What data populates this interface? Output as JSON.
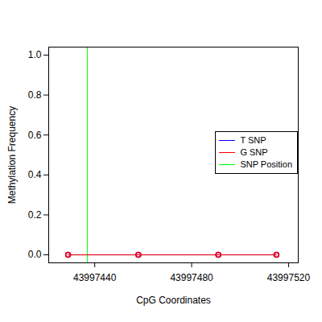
{
  "chart_data": {
    "type": "line",
    "x_label": "CpG Coordinates",
    "y_label": "Methylation Frequency",
    "x": [
      43997429,
      43997458,
      43997491,
      43997515
    ],
    "series": [
      {
        "name": "T SNP",
        "color": "#0000ff",
        "values": [
          0,
          0,
          0,
          0
        ],
        "marker": "circle"
      },
      {
        "name": "G SNP",
        "color": "#ff0000",
        "values": [
          0,
          0,
          0,
          0
        ],
        "marker": "circle"
      }
    ],
    "vlines": [
      {
        "name": "SNP Position",
        "x": 43997437,
        "color": "#00ff00"
      }
    ],
    "xlim": [
      43997421,
      43997524
    ],
    "xticks": [
      43997440,
      43997480,
      43997520
    ],
    "ylim": [
      -0.04,
      1.04
    ],
    "yticks": [
      {
        "value": 0,
        "label": "0.0"
      },
      0.2,
      0.4,
      0.6,
      0.8,
      {
        "value": 1,
        "label": "1.0"
      }
    ],
    "legend": "right",
    "grid": false
  }
}
